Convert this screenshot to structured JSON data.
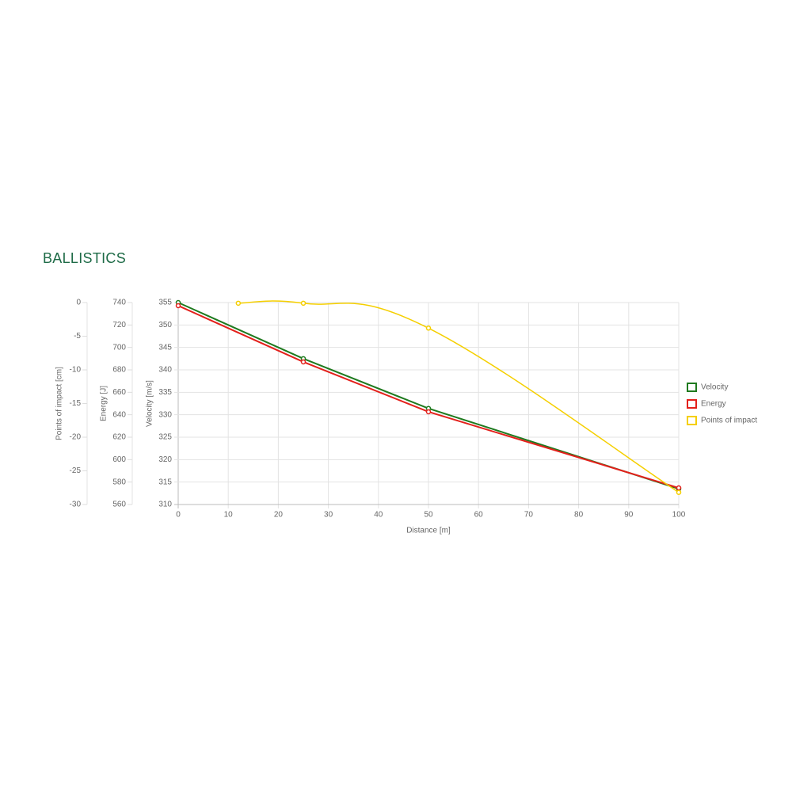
{
  "chart_data": {
    "type": "line",
    "title": "BALLISTICS",
    "x_label": "Distance [m]",
    "y_label": "Velocity [m/s]",
    "y2_label": "Energy [J]",
    "y3_label": "Points of impact [cm]",
    "xlim": [
      0,
      100
    ],
    "xticks": [
      0,
      10,
      20,
      30,
      40,
      50,
      60,
      70,
      80,
      90,
      100
    ],
    "ylim": [
      310,
      355
    ],
    "yticks": [
      310,
      315,
      320,
      325,
      330,
      335,
      340,
      345,
      350,
      355
    ],
    "y2lim": [
      560,
      740
    ],
    "y2ticks": [
      560,
      580,
      600,
      620,
      640,
      660,
      680,
      700,
      720,
      740
    ],
    "y3lim": [
      -30,
      0
    ],
    "y3ticks": [
      -30,
      -25,
      -20,
      -15,
      -10,
      -5,
      0
    ],
    "grid": true,
    "legend": "right",
    "series": [
      {
        "name": "Velocity",
        "color": "#1f7a1f",
        "axis": "y",
        "smooth": false,
        "x": [
          0,
          25,
          50,
          100
        ],
        "values": [
          355,
          342.5,
          331.4,
          313.5
        ]
      },
      {
        "name": "Energy",
        "color": "#e3201b",
        "axis": "y2",
        "smooth": false,
        "x": [
          0,
          25,
          50,
          100
        ],
        "values": [
          737.2,
          687.1,
          642.6,
          574.8
        ]
      },
      {
        "name": "Points of impact",
        "color": "#f5cf00",
        "axis": "y3",
        "smooth": true,
        "x": [
          12,
          25,
          50,
          100
        ],
        "values": [
          -0.1,
          -0.1,
          -3.8,
          -28.2
        ]
      }
    ]
  }
}
